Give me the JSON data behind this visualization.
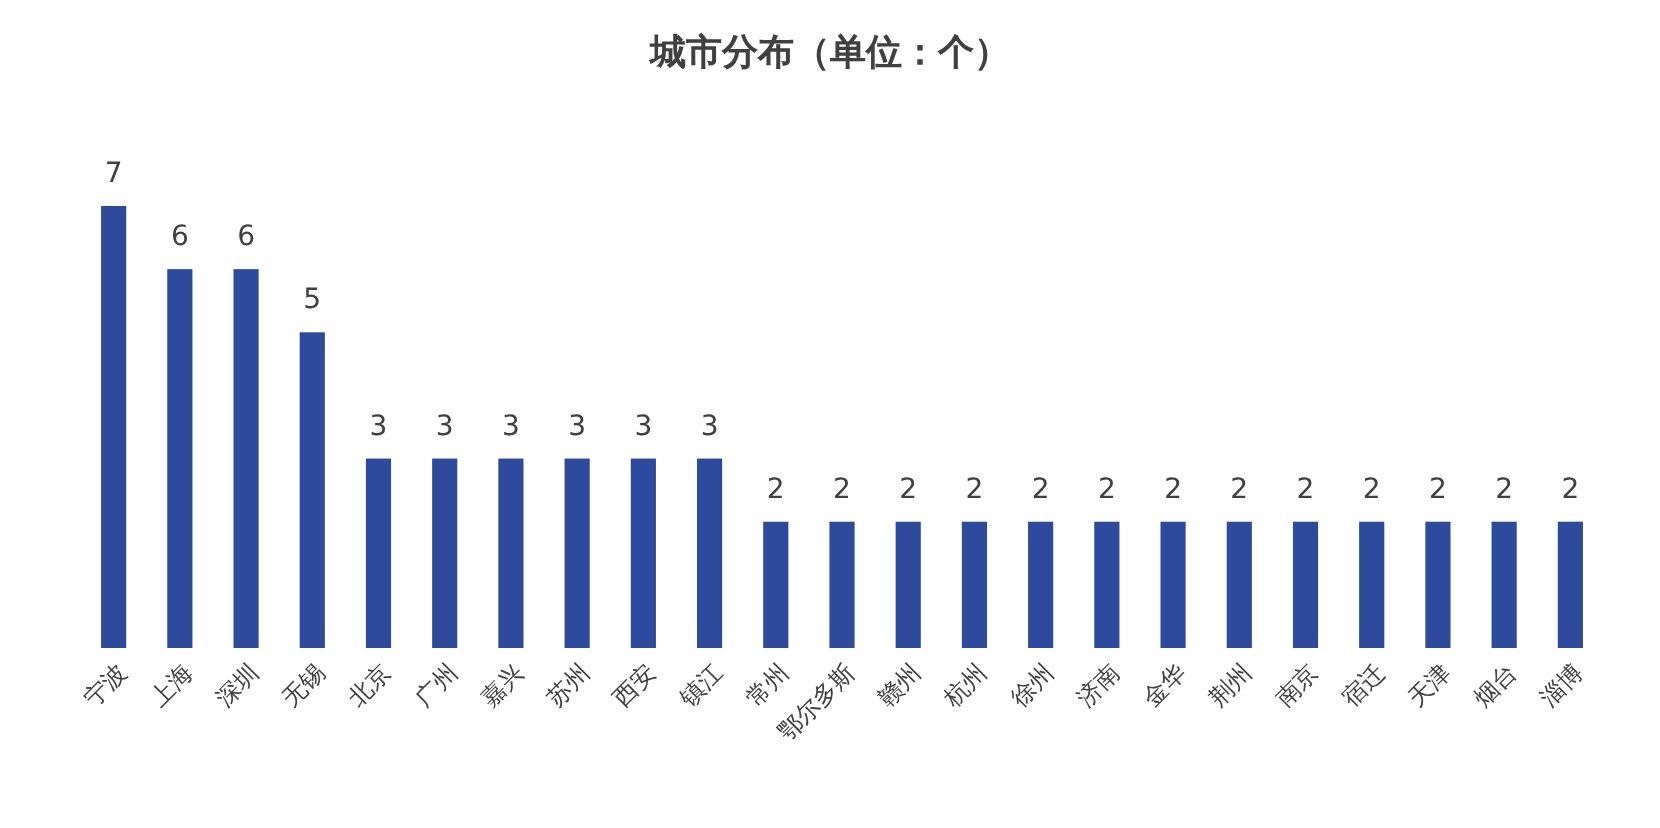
{
  "chart_data": {
    "type": "bar",
    "title": "城市分布（单位：个）",
    "categories": [
      "宁波",
      "上海",
      "深圳",
      "无锡",
      "北京",
      "广州",
      "嘉兴",
      "苏州",
      "西安",
      "镇江",
      "常州",
      "鄂尔多斯",
      "赣州",
      "杭州",
      "徐州",
      "济南",
      "金华",
      "荆州",
      "南京",
      "宿迁",
      "天津",
      "烟台",
      "淄博"
    ],
    "values": [
      7,
      6,
      6,
      5,
      3,
      3,
      3,
      3,
      3,
      3,
      2,
      2,
      2,
      2,
      2,
      2,
      2,
      2,
      2,
      2,
      2,
      2,
      2
    ],
    "color": "#2e4a9c",
    "data_labels": true
  }
}
